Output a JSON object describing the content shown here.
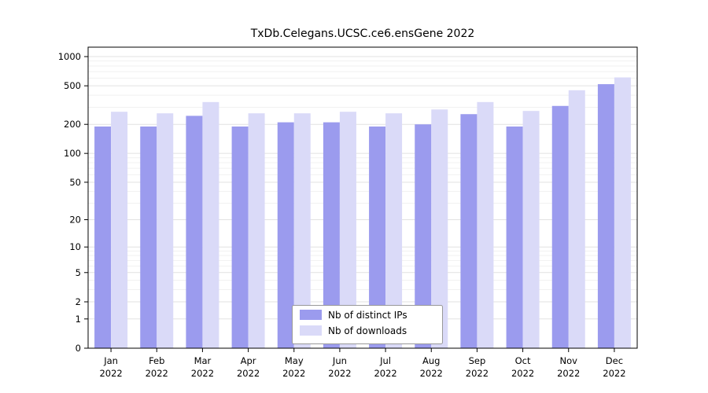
{
  "chart_data": {
    "type": "bar",
    "title": "TxDb.Celegans.UCSC.ce6.ensGene 2022",
    "categories": [
      "Jan",
      "Feb",
      "Mar",
      "Apr",
      "May",
      "Jun",
      "Jul",
      "Aug",
      "Sep",
      "Oct",
      "Nov",
      "Dec"
    ],
    "year_label": "2022",
    "series": [
      {
        "name": "Nb of distinct IPs",
        "color": "#9b9bee",
        "values": [
          190,
          190,
          245,
          190,
          210,
          210,
          190,
          200,
          255,
          190,
          310,
          520
        ]
      },
      {
        "name": "Nb of downloads",
        "color": "#dadaf8",
        "values": [
          270,
          260,
          340,
          260,
          260,
          270,
          260,
          285,
          340,
          275,
          450,
          610
        ]
      }
    ],
    "yticks": [
      0,
      1,
      2,
      5,
      10,
      20,
      50,
      100,
      200,
      500,
      1000
    ],
    "scale": "log1p",
    "ylim": [
      0,
      1000
    ],
    "xlabel": "",
    "ylabel": "",
    "grid": true,
    "legend_position": "bottom-center"
  },
  "colors": {
    "major_gridline": "#e2e2e2",
    "minor_gridline": "#f1f1f1",
    "axis_frame": "#000000",
    "legend_border": "#999999",
    "background": "#ffffff"
  }
}
